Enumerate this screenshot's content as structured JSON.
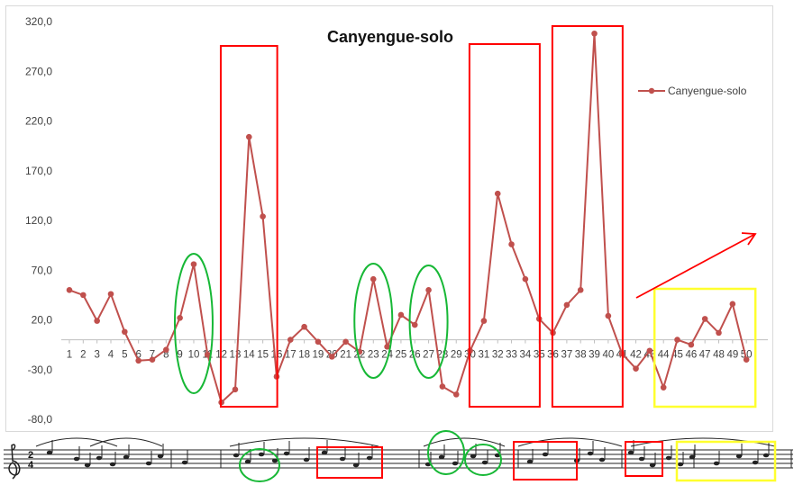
{
  "chart_data": {
    "type": "line",
    "title": "Canyengue-solo",
    "xlabel": "",
    "ylabel": "",
    "ylim": [
      -80,
      320
    ],
    "yticks": [
      "320,0",
      "270,0",
      "220,0",
      "170,0",
      "120,0",
      "70,0",
      "20,0",
      "-30,0",
      "-80,0"
    ],
    "yticks_values": [
      320,
      270,
      220,
      170,
      120,
      70,
      20,
      -30,
      -80
    ],
    "categories": [
      "1",
      "2",
      "3",
      "4",
      "5",
      "6",
      "7",
      "8",
      "9",
      "10",
      "11",
      "12",
      "13",
      "14",
      "15",
      "16",
      "17",
      "18",
      "19",
      "20",
      "21",
      "22",
      "23",
      "24",
      "25",
      "26",
      "27",
      "28",
      "29",
      "30",
      "31",
      "32",
      "33",
      "34",
      "35",
      "36",
      "37",
      "38",
      "39",
      "40",
      "41",
      "42",
      "43",
      "44",
      "45",
      "46",
      "47",
      "48",
      "49",
      "50"
    ],
    "series": [
      {
        "name": "Canyengue-solo",
        "color": "#c0504d",
        "values": [
          50,
          45,
          19,
          46,
          8,
          -21,
          -20,
          -10,
          22,
          76,
          -15,
          -63,
          -50,
          204,
          124,
          -37,
          0,
          13,
          -2,
          -17,
          -2,
          -12,
          61,
          -7,
          25,
          15,
          50,
          -47,
          -55,
          -11,
          19,
          147,
          96,
          61,
          21,
          7,
          35,
          50,
          308,
          24,
          -14,
          -29,
          -11,
          -48,
          0,
          -5,
          21,
          7,
          36,
          -20
        ]
      }
    ],
    "legend": "right",
    "grid": false,
    "annotations": {
      "red_boxes_x_ranges": [
        [
          13,
          15
        ],
        [
          31,
          34
        ],
        [
          37,
          40
        ]
      ],
      "green_ellipses_center_x": [
        10,
        23,
        27
      ],
      "yellow_box_x_range": [
        44,
        50
      ],
      "arrow": "red arrow pointing up-right"
    }
  },
  "colors": {
    "series": "#c0504d",
    "box_red": "#ff0000",
    "ellipse_green": "#17b836",
    "box_yellow": "#ffff2e",
    "arrow_red": "#ff0000"
  },
  "music_strip": {
    "time_signature_top": "2",
    "time_signature_bottom": "4",
    "clef_icon": "treble-clef-icon"
  }
}
